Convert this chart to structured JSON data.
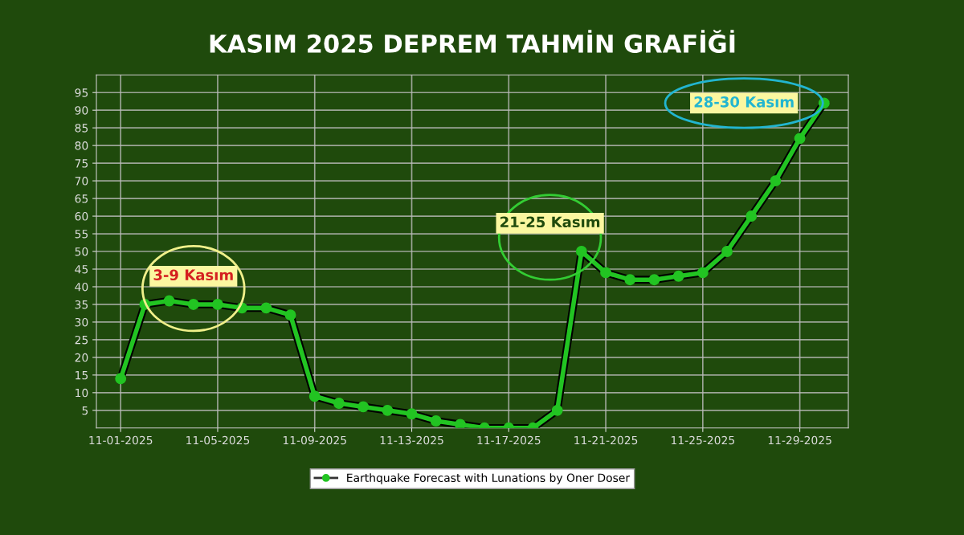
{
  "chart_data": {
    "type": "line",
    "title": "KASIM 2025 DEPREM TAHMİN GRAFİĞİ",
    "x": [
      "2025-11-01",
      "2025-11-02",
      "2025-11-03",
      "2025-11-04",
      "2025-11-05",
      "2025-11-06",
      "2025-11-07",
      "2025-11-08",
      "2025-11-09",
      "2025-11-10",
      "2025-11-11",
      "2025-11-12",
      "2025-11-13",
      "2025-11-14",
      "2025-11-15",
      "2025-11-16",
      "2025-11-17",
      "2025-11-18",
      "2025-11-19",
      "2025-11-20",
      "2025-11-21",
      "2025-11-22",
      "2025-11-23",
      "2025-11-24",
      "2025-11-25",
      "2025-11-26",
      "2025-11-27",
      "2025-11-28",
      "2025-11-29",
      "2025-11-30"
    ],
    "series": [
      {
        "name": "Earthquake Forecast with Lunations by Oner Doser",
        "color": "#22c422",
        "values": [
          14,
          35,
          36,
          35,
          35,
          34,
          34,
          32,
          9,
          7,
          6,
          5,
          4,
          2,
          1,
          0,
          0,
          0,
          5,
          50,
          44,
          42,
          42,
          43,
          44,
          50,
          60,
          70,
          82,
          92
        ]
      }
    ],
    "xlim": [
      "2025-10-31",
      "2025-12-01"
    ],
    "xticks": [
      {
        "value": "2025-11-01",
        "label": "11-01-2025"
      },
      {
        "value": "2025-11-05",
        "label": "11-05-2025"
      },
      {
        "value": "2025-11-09",
        "label": "11-09-2025"
      },
      {
        "value": "2025-11-13",
        "label": "11-13-2025"
      },
      {
        "value": "2025-11-17",
        "label": "11-17-2025"
      },
      {
        "value": "2025-11-21",
        "label": "11-21-2025"
      },
      {
        "value": "2025-11-25",
        "label": "11-25-2025"
      },
      {
        "value": "2025-11-29",
        "label": "11-29-2025"
      }
    ],
    "ylim": [
      0,
      100
    ],
    "yticks": [
      5,
      10,
      15,
      20,
      25,
      30,
      35,
      40,
      45,
      50,
      55,
      60,
      65,
      70,
      75,
      80,
      85,
      90,
      95
    ],
    "annotations": [
      {
        "text": "3-9 Kasım",
        "x": "2025-11-03",
        "y": 36
      },
      {
        "text": "21-25 Kasım",
        "x": "2025-11-20",
        "y": 50
      },
      {
        "text": "28-30 Kasım",
        "x": "2025-11-30",
        "y": 92
      }
    ],
    "grid": true,
    "legend": "bottom",
    "marker": "circle",
    "line_style": "solid"
  }
}
